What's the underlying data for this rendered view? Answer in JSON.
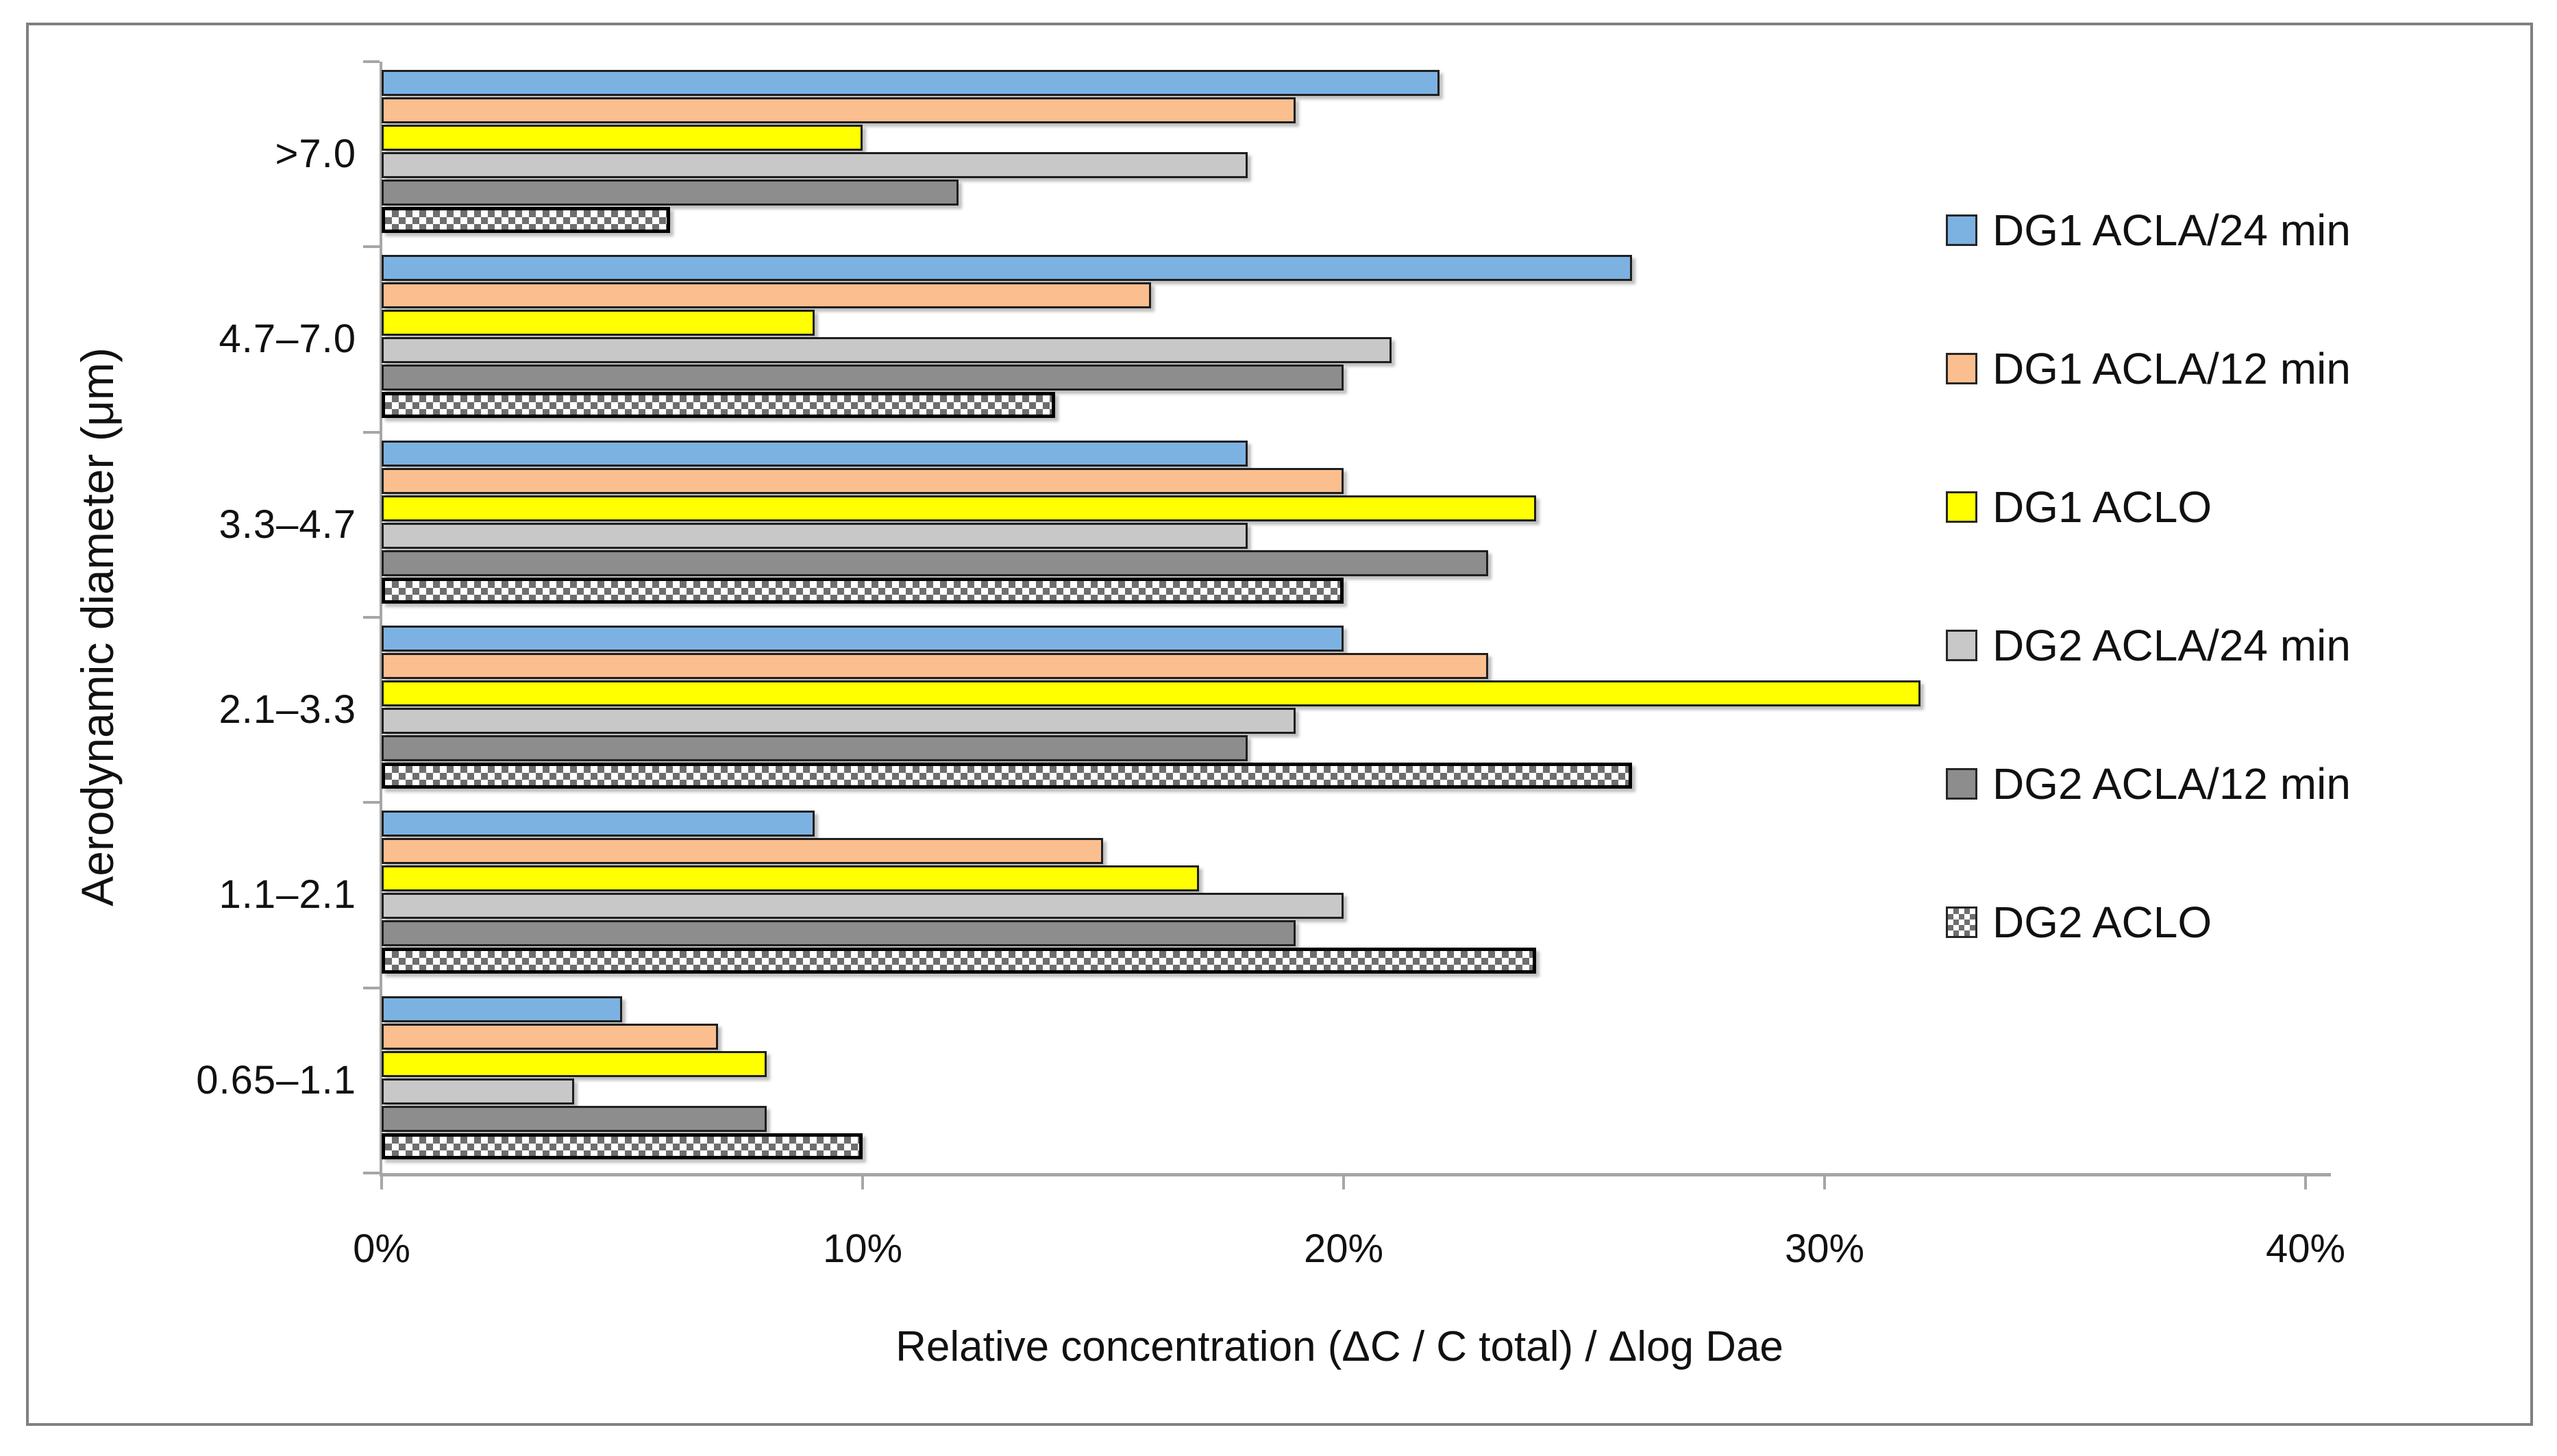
{
  "frame": {
    "border_color": "#808080"
  },
  "axes": {
    "x_title": "Relative concentration (ΔC / C total) / Δlog Dae",
    "y_title": "Aerodynamic diameter (μm)",
    "x_tick_labels": [
      "0%",
      "10%",
      "20%",
      "30%",
      "40%"
    ],
    "axis_color": "#A6A6A6",
    "text_color": "#111111"
  },
  "chart_data": {
    "type": "bar",
    "orientation": "horizontal",
    "title": "",
    "xlabel": "Relative concentration (ΔC / C total) / Δlog Dae",
    "ylabel": "Aerodynamic diameter (μm)",
    "xlim": [
      0,
      40
    ],
    "x_ticks_percent": [
      0,
      10,
      20,
      30,
      40
    ],
    "grid": false,
    "legend_position": "right",
    "categories": [
      ">7.0",
      "4.7–7.0",
      "3.3–4.7",
      "2.1–3.3",
      "1.1–2.1",
      "0.65–1.1"
    ],
    "series": [
      {
        "name": "DG1 ACLA/24 min",
        "color": "#7CB2E2",
        "pattern": "solid",
        "values_percent": [
          22,
          26,
          18,
          20,
          9,
          5
        ]
      },
      {
        "name": "DG1 ACLA/12 min",
        "color": "#FBBE8E",
        "pattern": "solid",
        "values_percent": [
          19,
          16,
          20,
          23,
          15,
          7
        ]
      },
      {
        "name": "DG1 ACLO",
        "color": "#FFFF00",
        "pattern": "solid",
        "values_percent": [
          10,
          9,
          24,
          32,
          17,
          8
        ]
      },
      {
        "name": "DG2 ACLA/24 min",
        "color": "#C8C8C8",
        "pattern": "solid",
        "values_percent": [
          18,
          21,
          18,
          19,
          20,
          4
        ]
      },
      {
        "name": "DG2 ACLA/12 min",
        "color": "#8D8D8D",
        "pattern": "solid",
        "values_percent": [
          12,
          20,
          23,
          18,
          19,
          8
        ]
      },
      {
        "name": "DG2 ACLO",
        "color": "#FFFFFF",
        "pattern": "checker",
        "values_percent": [
          6,
          14,
          20,
          26,
          24,
          10
        ]
      }
    ]
  }
}
